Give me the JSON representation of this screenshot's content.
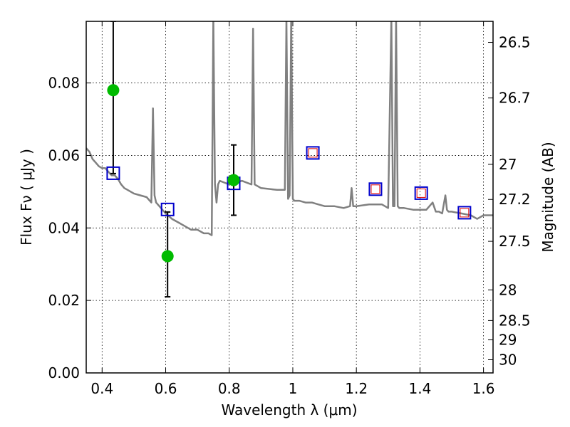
{
  "chart_data": {
    "type": "line",
    "xlabel": "Wavelength  λ (μm)",
    "ylabel": "Flux  Fν  ( μJy )",
    "ylabel_right": "Magnitude (AB)",
    "xlim": [
      0.35,
      1.63
    ],
    "ylim": [
      0.0,
      0.097
    ],
    "grid": true,
    "x_ticks": [
      0.4,
      0.6,
      0.8,
      1.0,
      1.2,
      1.4,
      1.6
    ],
    "x_tick_labels": [
      "0.4",
      "0.6",
      "0.8",
      "1",
      "1.2",
      "1.4",
      "1.6"
    ],
    "y_ticks": [
      0.0,
      0.02,
      0.04,
      0.06,
      0.08
    ],
    "y_tick_labels": [
      "0.00",
      "0.02",
      "0.04",
      "0.06",
      "0.08"
    ],
    "mag_ticks": [
      26.5,
      26.7,
      27,
      27.2,
      27.5,
      28,
      28.5,
      29,
      30
    ],
    "series": [
      {
        "kind": "model_spectrum",
        "color": "#808080",
        "x": [
          0.35,
          0.36,
          0.37,
          0.38,
          0.39,
          0.4,
          0.41,
          0.42,
          0.43,
          0.44,
          0.45,
          0.46,
          0.47,
          0.48,
          0.5,
          0.52,
          0.54,
          0.555,
          0.56,
          0.565,
          0.57,
          0.58,
          0.6,
          0.62,
          0.64,
          0.66,
          0.68,
          0.7,
          0.72,
          0.735,
          0.745,
          0.75,
          0.755,
          0.76,
          0.765,
          0.77,
          0.8,
          0.84,
          0.87,
          0.875,
          0.88,
          0.9,
          0.95,
          0.975,
          0.98,
          0.985,
          0.99,
          0.995,
          1.0,
          1.005,
          1.01,
          1.02,
          1.04,
          1.06,
          1.08,
          1.1,
          1.13,
          1.16,
          1.18,
          1.185,
          1.19,
          1.2,
          1.24,
          1.28,
          1.3,
          1.31,
          1.315,
          1.32,
          1.325,
          1.33,
          1.335,
          1.34,
          1.35,
          1.38,
          1.42,
          1.44,
          1.45,
          1.46,
          1.47,
          1.48,
          1.485,
          1.49,
          1.5,
          1.53,
          1.56,
          1.58,
          1.6,
          1.63
        ],
        "y": [
          0.062,
          0.061,
          0.059,
          0.058,
          0.057,
          0.0565,
          0.0565,
          0.0555,
          0.0545,
          0.0545,
          0.0535,
          0.052,
          0.051,
          0.0505,
          0.0495,
          0.049,
          0.0485,
          0.047,
          0.073,
          0.049,
          0.047,
          0.046,
          0.044,
          0.0425,
          0.0415,
          0.0405,
          0.0395,
          0.0395,
          0.0385,
          0.0385,
          0.038,
          0.098,
          0.052,
          0.047,
          0.052,
          0.053,
          0.052,
          0.053,
          0.052,
          0.095,
          0.052,
          0.051,
          0.0505,
          0.0505,
          0.098,
          0.048,
          0.049,
          0.098,
          0.048,
          0.0475,
          0.0475,
          0.0475,
          0.047,
          0.047,
          0.0465,
          0.046,
          0.046,
          0.0455,
          0.046,
          0.051,
          0.046,
          0.046,
          0.0465,
          0.0465,
          0.0455,
          0.098,
          0.046,
          0.046,
          0.098,
          0.046,
          0.0455,
          0.0455,
          0.0455,
          0.045,
          0.045,
          0.047,
          0.0445,
          0.0445,
          0.044,
          0.049,
          0.045,
          0.0445,
          0.0445,
          0.044,
          0.0435,
          0.0425,
          0.0435,
          0.0435
        ]
      },
      {
        "kind": "photometry_points",
        "color": "#00bb00",
        "x": [
          0.435,
          0.606,
          0.814
        ],
        "y": [
          0.078,
          0.0322,
          0.0532
        ],
        "yerr_low": [
          0.023,
          0.0112,
          0.0097
        ],
        "yerr_high": [
          0.019,
          0.0122,
          0.0097
        ]
      },
      {
        "kind": "model_photometry_open_squares",
        "color": "#0000cc",
        "x": [
          0.435,
          0.606,
          0.814,
          1.063,
          1.26,
          1.404,
          1.54
        ],
        "y": [
          0.0551,
          0.0451,
          0.0523,
          0.0607,
          0.0507,
          0.0496,
          0.0442
        ]
      },
      {
        "kind": "inner_squares",
        "color": "#dd0000",
        "x": [
          1.063,
          1.26,
          1.404,
          1.54
        ],
        "y": [
          0.0607,
          0.0507,
          0.0496,
          0.0442
        ]
      }
    ]
  }
}
